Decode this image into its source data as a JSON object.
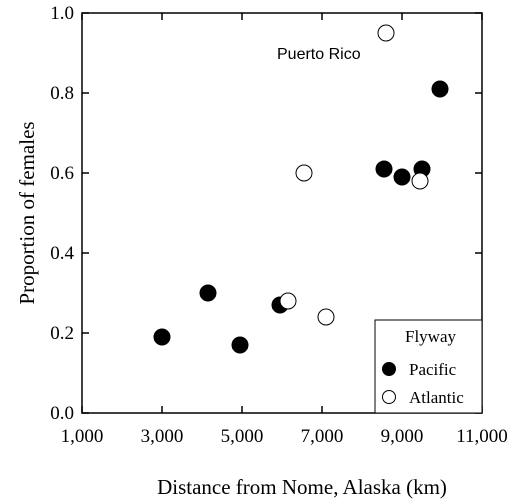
{
  "chart_data": {
    "type": "scatter",
    "title": "",
    "xlabel": "Distance from Nome, Alaska (km)",
    "ylabel": "Proportion of females",
    "xlim": [
      1000,
      11000
    ],
    "ylim": [
      0.0,
      1.0
    ],
    "x_ticks": [
      "1,000",
      "3,000",
      "5,000",
      "7,000",
      "9,000",
      "11,000"
    ],
    "y_ticks": [
      "0.0",
      "0.2",
      "0.4",
      "0.6",
      "0.8",
      "1.0"
    ],
    "grid": false,
    "legend": {
      "title": "Flyway",
      "position": "bottom-right",
      "entries": [
        "Pacific",
        "Atlantic"
      ]
    },
    "annotations": [
      {
        "text": "Puerto Rico",
        "x": 8600,
        "y": 0.95
      }
    ],
    "series": [
      {
        "name": "Pacific",
        "marker": "filled-circle",
        "color": "#000000",
        "points": [
          {
            "x": 3000,
            "y": 0.19
          },
          {
            "x": 4150,
            "y": 0.3
          },
          {
            "x": 4950,
            "y": 0.17
          },
          {
            "x": 5950,
            "y": 0.27
          },
          {
            "x": 8550,
            "y": 0.61
          },
          {
            "x": 9000,
            "y": 0.59
          },
          {
            "x": 9500,
            "y": 0.61
          },
          {
            "x": 9950,
            "y": 0.81
          }
        ]
      },
      {
        "name": "Atlantic",
        "marker": "open-circle",
        "color": "#000000",
        "points": [
          {
            "x": 6150,
            "y": 0.28
          },
          {
            "x": 6550,
            "y": 0.6
          },
          {
            "x": 7100,
            "y": 0.24
          },
          {
            "x": 8600,
            "y": 0.95
          },
          {
            "x": 9450,
            "y": 0.58
          }
        ]
      }
    ]
  }
}
